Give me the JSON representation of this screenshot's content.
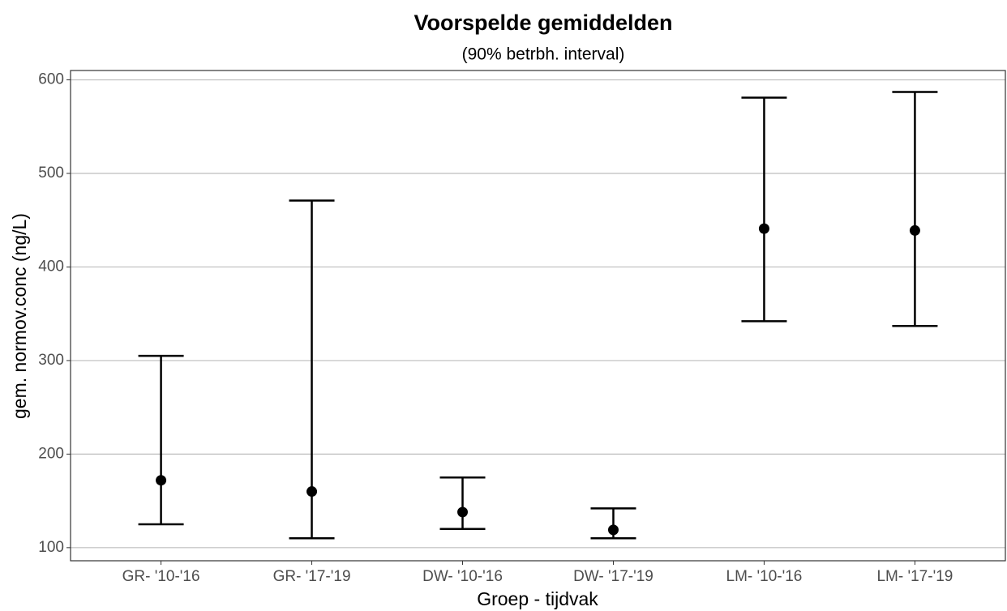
{
  "chart_data": {
    "type": "errorbar",
    "title": "Voorspelde gemiddelden",
    "subtitle": "(90% betrbh. interval)",
    "x_label": "Groep - tijdvak",
    "y_label": "gem. normov.conc (ng/L)",
    "categories": [
      "GR- '10-'16",
      "GR- '17-'19",
      "DW- '10-'16",
      "DW- '17-'19",
      "LM- '10-'16",
      "LM- '17-'19"
    ],
    "values": [
      172,
      160,
      138,
      119,
      441,
      439
    ],
    "lower": [
      125,
      110,
      120,
      110,
      342,
      337
    ],
    "upper": [
      305,
      471,
      175,
      142,
      581,
      587
    ],
    "color": "#000000",
    "ylim": [
      86,
      610
    ],
    "yticks": [
      100,
      200,
      300,
      400,
      500,
      600
    ],
    "grid": true
  }
}
